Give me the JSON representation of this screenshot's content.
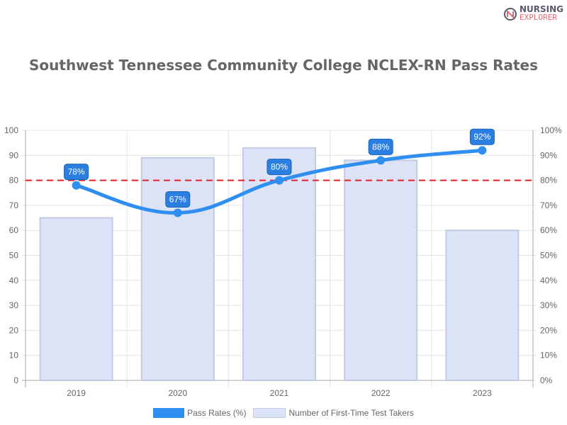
{
  "logo": {
    "line1": "NURSING",
    "line2": "EXPLORER"
  },
  "chart_data": {
    "type": "bar+line",
    "title": "Southwest Tennessee Community College NCLEX-RN Pass Rates",
    "categories": [
      "2019",
      "2020",
      "2021",
      "2022",
      "2023"
    ],
    "series": [
      {
        "name": "Pass Rates (%)",
        "type": "line",
        "axis": "right",
        "values": [
          78,
          67,
          80,
          88,
          92
        ],
        "labels": [
          "78%",
          "67%",
          "80%",
          "88%",
          "92%"
        ],
        "color": "#2e8ff0"
      },
      {
        "name": "Number of First-Time Test Takers",
        "type": "bar",
        "axis": "left",
        "values": [
          65,
          89,
          93,
          88,
          60
        ],
        "color": "#dce3f7",
        "border": "#c3cbe3"
      }
    ],
    "y_left": {
      "range": [
        0,
        100
      ],
      "ticks": [
        "0",
        "10",
        "20",
        "30",
        "40",
        "50",
        "60",
        "70",
        "80",
        "90",
        "100"
      ]
    },
    "y_right": {
      "range": [
        0,
        100
      ],
      "ticks": [
        "0%",
        "10%",
        "20%",
        "30%",
        "40%",
        "50%",
        "60%",
        "70%",
        "80%",
        "90%",
        "100%"
      ]
    },
    "reference_line": {
      "value": 80,
      "color": "#e8202a",
      "style": "dashed"
    },
    "grid": true,
    "legend_placement": "bottom"
  }
}
